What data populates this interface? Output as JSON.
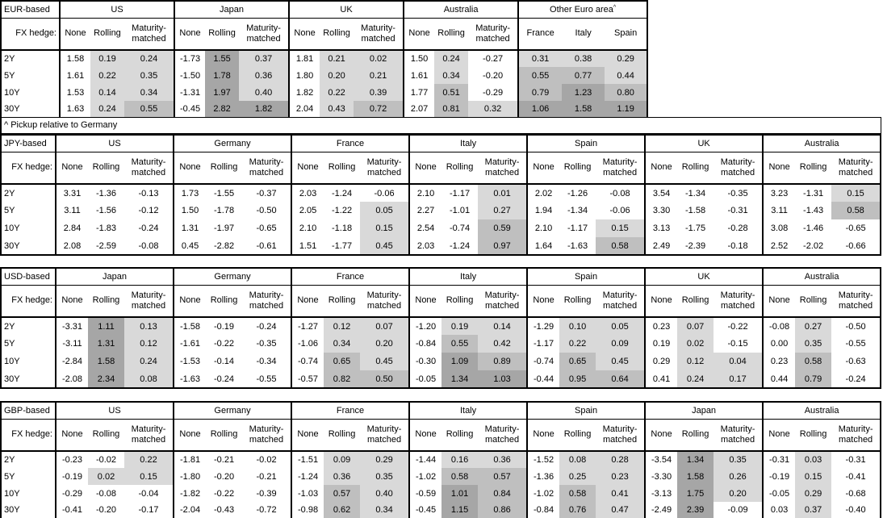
{
  "colors": {
    "background": "#ffffff",
    "border": "#000000",
    "shade_light": "#d9d9d9",
    "shade_medium": "#bfbfbf",
    "shade_dark": "#a6a6a6"
  },
  "labels": {
    "fx_hedge": "FX hedge:"
  },
  "note": "^ Pickup relative to Germany",
  "chart_data": [
    {
      "type": "table",
      "title": "EUR-based",
      "tenors": [
        "2Y",
        "5Y",
        "10Y",
        "30Y"
      ],
      "columns": [
        "None",
        "Rolling",
        "Maturity-matched"
      ],
      "groups": [
        {
          "name": "US",
          "rows": [
            [
              "1.58",
              "0.19",
              "0.24"
            ],
            [
              "1.61",
              "0.22",
              "0.35"
            ],
            [
              "1.53",
              "0.14",
              "0.34"
            ],
            [
              "1.63",
              "0.24",
              "0.55"
            ]
          ]
        },
        {
          "name": "Japan",
          "rows": [
            [
              "-1.73",
              "1.55",
              "0.37"
            ],
            [
              "-1.50",
              "1.78",
              "0.36"
            ],
            [
              "-1.31",
              "1.97",
              "0.40"
            ],
            [
              "-0.45",
              "2.82",
              "1.82"
            ]
          ]
        },
        {
          "name": "UK",
          "rows": [
            [
              "1.81",
              "0.21",
              "0.02"
            ],
            [
              "1.80",
              "0.20",
              "0.21"
            ],
            [
              "1.82",
              "0.22",
              "0.39"
            ],
            [
              "2.04",
              "0.43",
              "0.72"
            ]
          ]
        },
        {
          "name": "Australia",
          "rows": [
            [
              "1.50",
              "0.24",
              "-0.27"
            ],
            [
              "1.61",
              "0.34",
              "-0.20"
            ],
            [
              "1.77",
              "0.51",
              "-0.29"
            ],
            [
              "2.07",
              "0.81",
              "0.32"
            ]
          ]
        },
        {
          "name": "Other Euro area",
          "sup": "^",
          "columns": [
            "France",
            "Italy",
            "Spain"
          ],
          "shade_all": true,
          "rows": [
            [
              "0.31",
              "0.38",
              "0.29"
            ],
            [
              "0.55",
              "0.77",
              "0.44"
            ],
            [
              "0.79",
              "1.23",
              "0.80"
            ],
            [
              "1.06",
              "1.58",
              "1.19"
            ]
          ]
        }
      ]
    },
    {
      "type": "table",
      "title": "JPY-based",
      "tenors": [
        "2Y",
        "5Y",
        "10Y",
        "30Y"
      ],
      "columns": [
        "None",
        "Rolling",
        "Maturity-matched"
      ],
      "groups": [
        {
          "name": "US",
          "rows": [
            [
              "3.31",
              "-1.36",
              "-0.13"
            ],
            [
              "3.11",
              "-1.56",
              "-0.12"
            ],
            [
              "2.84",
              "-1.83",
              "-0.24"
            ],
            [
              "2.08",
              "-2.59",
              "-0.08"
            ]
          ]
        },
        {
          "name": "Germany",
          "rows": [
            [
              "1.73",
              "-1.55",
              "-0.37"
            ],
            [
              "1.50",
              "-1.78",
              "-0.50"
            ],
            [
              "1.31",
              "-1.97",
              "-0.65"
            ],
            [
              "0.45",
              "-2.82",
              "-0.61"
            ]
          ]
        },
        {
          "name": "France",
          "rows": [
            [
              "2.03",
              "-1.24",
              "-0.06"
            ],
            [
              "2.05",
              "-1.22",
              "0.05"
            ],
            [
              "2.10",
              "-1.18",
              "0.15"
            ],
            [
              "1.51",
              "-1.77",
              "0.45"
            ]
          ]
        },
        {
          "name": "Italy",
          "rows": [
            [
              "2.10",
              "-1.17",
              "0.01"
            ],
            [
              "2.27",
              "-1.01",
              "0.27"
            ],
            [
              "2.54",
              "-0.74",
              "0.59"
            ],
            [
              "2.03",
              "-1.24",
              "0.97"
            ]
          ]
        },
        {
          "name": "Spain",
          "rows": [
            [
              "2.02",
              "-1.26",
              "-0.08"
            ],
            [
              "1.94",
              "-1.34",
              "-0.06"
            ],
            [
              "2.10",
              "-1.17",
              "0.15"
            ],
            [
              "1.64",
              "-1.63",
              "0.58"
            ]
          ]
        },
        {
          "name": "UK",
          "rows": [
            [
              "3.54",
              "-1.34",
              "-0.35"
            ],
            [
              "3.30",
              "-1.58",
              "-0.31"
            ],
            [
              "3.13",
              "-1.75",
              "-0.28"
            ],
            [
              "2.49",
              "-2.39",
              "-0.18"
            ]
          ]
        },
        {
          "name": "Australia",
          "rows": [
            [
              "3.23",
              "-1.31",
              "0.15"
            ],
            [
              "3.11",
              "-1.43",
              "0.58"
            ],
            [
              "3.08",
              "-1.46",
              "-0.65"
            ],
            [
              "2.52",
              "-2.02",
              "-0.66"
            ]
          ]
        }
      ]
    },
    {
      "type": "table",
      "title": "USD-based",
      "tenors": [
        "2Y",
        "5Y",
        "10Y",
        "30Y"
      ],
      "columns": [
        "None",
        "Rolling",
        "Maturity-matched"
      ],
      "groups": [
        {
          "name": "Japan",
          "rows": [
            [
              "-3.31",
              "1.11",
              "0.13"
            ],
            [
              "-3.11",
              "1.31",
              "0.12"
            ],
            [
              "-2.84",
              "1.58",
              "0.24"
            ],
            [
              "-2.08",
              "2.34",
              "0.08"
            ]
          ]
        },
        {
          "name": "Germany",
          "rows": [
            [
              "-1.58",
              "-0.19",
              "-0.24"
            ],
            [
              "-1.61",
              "-0.22",
              "-0.35"
            ],
            [
              "-1.53",
              "-0.14",
              "-0.34"
            ],
            [
              "-1.63",
              "-0.24",
              "-0.55"
            ]
          ]
        },
        {
          "name": "France",
          "rows": [
            [
              "-1.27",
              "0.12",
              "0.07"
            ],
            [
              "-1.06",
              "0.34",
              "0.20"
            ],
            [
              "-0.74",
              "0.65",
              "0.45"
            ],
            [
              "-0.57",
              "0.82",
              "0.50"
            ]
          ]
        },
        {
          "name": "Italy",
          "rows": [
            [
              "-1.20",
              "0.19",
              "0.14"
            ],
            [
              "-0.84",
              "0.55",
              "0.42"
            ],
            [
              "-0.30",
              "1.09",
              "0.89"
            ],
            [
              "-0.05",
              "1.34",
              "1.03"
            ]
          ]
        },
        {
          "name": "Spain",
          "rows": [
            [
              "-1.29",
              "0.10",
              "0.05"
            ],
            [
              "-1.17",
              "0.22",
              "0.09"
            ],
            [
              "-0.74",
              "0.65",
              "0.45"
            ],
            [
              "-0.44",
              "0.95",
              "0.64"
            ]
          ]
        },
        {
          "name": "UK",
          "rows": [
            [
              "0.23",
              "0.07",
              "-0.22"
            ],
            [
              "0.19",
              "0.02",
              "-0.15"
            ],
            [
              "0.29",
              "0.12",
              "0.04"
            ],
            [
              "0.41",
              "0.24",
              "0.17"
            ]
          ]
        },
        {
          "name": "Australia",
          "rows": [
            [
              "-0.08",
              "0.27",
              "-0.50"
            ],
            [
              "0.00",
              "0.35",
              "-0.55"
            ],
            [
              "0.23",
              "0.58",
              "-0.63"
            ],
            [
              "0.44",
              "0.79",
              "-0.24"
            ]
          ]
        }
      ]
    },
    {
      "type": "table",
      "title": "GBP-based",
      "tenors": [
        "2Y",
        "5Y",
        "10Y",
        "30Y"
      ],
      "columns": [
        "None",
        "Rolling",
        "Maturity-matched"
      ],
      "groups": [
        {
          "name": "US",
          "rows": [
            [
              "-0.23",
              "-0.02",
              "0.22"
            ],
            [
              "-0.19",
              "0.02",
              "0.15"
            ],
            [
              "-0.29",
              "-0.08",
              "-0.04"
            ],
            [
              "-0.41",
              "-0.20",
              "-0.17"
            ]
          ]
        },
        {
          "name": "Germany",
          "rows": [
            [
              "-1.81",
              "-0.21",
              "-0.02"
            ],
            [
              "-1.80",
              "-0.20",
              "-0.21"
            ],
            [
              "-1.82",
              "-0.22",
              "-0.39"
            ],
            [
              "-2.04",
              "-0.43",
              "-0.72"
            ]
          ]
        },
        {
          "name": "France",
          "rows": [
            [
              "-1.51",
              "0.09",
              "0.29"
            ],
            [
              "-1.24",
              "0.36",
              "0.35"
            ],
            [
              "-1.03",
              "0.57",
              "0.40"
            ],
            [
              "-0.98",
              "0.62",
              "0.34"
            ]
          ]
        },
        {
          "name": "Italy",
          "rows": [
            [
              "-1.44",
              "0.16",
              "0.36"
            ],
            [
              "-1.02",
              "0.58",
              "0.57"
            ],
            [
              "-0.59",
              "1.01",
              "0.84"
            ],
            [
              "-0.45",
              "1.15",
              "0.86"
            ]
          ]
        },
        {
          "name": "Spain",
          "rows": [
            [
              "-1.52",
              "0.08",
              "0.28"
            ],
            [
              "-1.36",
              "0.25",
              "0.23"
            ],
            [
              "-1.02",
              "0.58",
              "0.41"
            ],
            [
              "-0.84",
              "0.76",
              "0.47"
            ]
          ]
        },
        {
          "name": "Japan",
          "rows": [
            [
              "-3.54",
              "1.34",
              "0.35"
            ],
            [
              "-3.30",
              "1.58",
              "0.26"
            ],
            [
              "-3.13",
              "1.75",
              "0.20"
            ],
            [
              "-2.49",
              "2.39",
              "-0.09"
            ]
          ]
        },
        {
          "name": "Australia",
          "rows": [
            [
              "-0.31",
              "0.03",
              "-0.31"
            ],
            [
              "-0.19",
              "0.15",
              "-0.41"
            ],
            [
              "-0.05",
              "0.29",
              "-0.68"
            ],
            [
              "0.03",
              "0.37",
              "-0.40"
            ]
          ]
        }
      ]
    }
  ]
}
